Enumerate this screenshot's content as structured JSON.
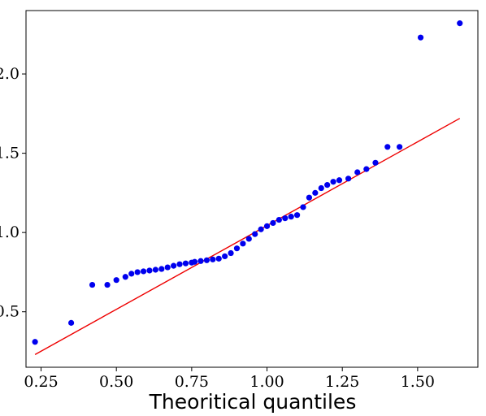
{
  "chart_data": {
    "type": "scatter",
    "title": "",
    "xlabel": "Theoritical quantiles",
    "ylabel": "",
    "xlim": [
      0.2,
      1.7
    ],
    "ylim": [
      0.15,
      2.4
    ],
    "x_ticks": [
      0.25,
      0.5,
      0.75,
      1.0,
      1.25,
      1.5
    ],
    "x_tick_labels": [
      "0.25",
      "0.50",
      "0.75",
      "1.00",
      "1.25",
      "1.50"
    ],
    "y_ticks": [
      0.5,
      1.0,
      1.5,
      2.0
    ],
    "y_tick_labels": [
      "0.5",
      "1.0",
      "1.5",
      "2.0"
    ],
    "grid": false,
    "colors": {
      "points": "#0000ee",
      "line": "#ee0000"
    },
    "series": [
      {
        "type": "scatter",
        "x": [
          0.23,
          0.35,
          0.42,
          0.47,
          0.5,
          0.53,
          0.55,
          0.57,
          0.59,
          0.61,
          0.63,
          0.65,
          0.67,
          0.69,
          0.71,
          0.73,
          0.75,
          0.76,
          0.78,
          0.8,
          0.82,
          0.84,
          0.86,
          0.88,
          0.9,
          0.92,
          0.94,
          0.96,
          0.98,
          1.0,
          1.02,
          1.04,
          1.06,
          1.08,
          1.1,
          1.12,
          1.14,
          1.16,
          1.18,
          1.2,
          1.22,
          1.24,
          1.27,
          1.3,
          1.33,
          1.36,
          1.4,
          1.44,
          1.51,
          1.64
        ],
        "y": [
          0.31,
          0.43,
          0.67,
          0.67,
          0.7,
          0.72,
          0.74,
          0.75,
          0.755,
          0.76,
          0.765,
          0.77,
          0.78,
          0.79,
          0.8,
          0.805,
          0.81,
          0.815,
          0.82,
          0.825,
          0.83,
          0.835,
          0.85,
          0.87,
          0.9,
          0.93,
          0.96,
          0.99,
          1.02,
          1.04,
          1.06,
          1.08,
          1.09,
          1.1,
          1.11,
          1.16,
          1.22,
          1.25,
          1.28,
          1.3,
          1.32,
          1.33,
          1.34,
          1.38,
          1.4,
          1.44,
          1.54,
          1.54,
          2.23,
          2.32
        ]
      },
      {
        "type": "line",
        "x": [
          0.23,
          1.64
        ],
        "y": [
          0.23,
          1.72
        ]
      }
    ]
  }
}
